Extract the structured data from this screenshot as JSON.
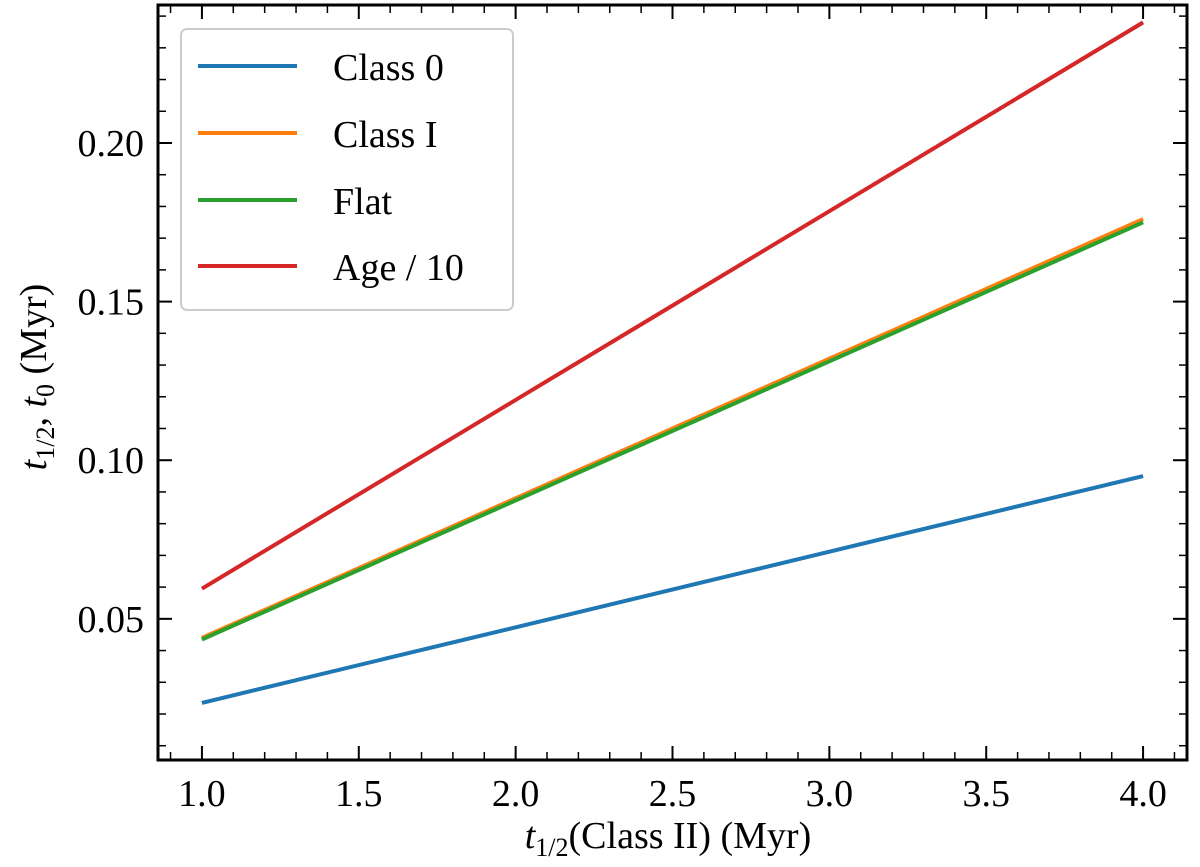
{
  "chart_data": {
    "type": "line",
    "title": "",
    "xlabel_parts": {
      "var": "t",
      "sub": "1/2",
      "rest": "(Class II) (Myr)"
    },
    "ylabel_parts": {
      "var1": "t",
      "sub1": "1/2",
      "sep": ", ",
      "var2": "t",
      "sub2": "0",
      "rest": " (Myr)"
    },
    "xlim": [
      0.86,
      4.14
    ],
    "ylim": [
      0.0055,
      0.2435
    ],
    "x_ticks": [
      1.0,
      1.5,
      2.0,
      2.5,
      3.0,
      3.5,
      4.0
    ],
    "x_tick_labels": [
      "1.0",
      "1.5",
      "2.0",
      "2.5",
      "3.0",
      "3.5",
      "4.0"
    ],
    "y_ticks": [
      0.05,
      0.1,
      0.15,
      0.2
    ],
    "y_tick_labels": [
      "0.05",
      "0.10",
      "0.15",
      "0.20"
    ],
    "x_minor_step": 0.1,
    "y_minor_step": 0.01,
    "grid": false,
    "legend_position": "top-left",
    "series": [
      {
        "name": "Class 0",
        "color": "#1f77b4",
        "x": [
          1.0,
          4.0
        ],
        "y": [
          0.0235,
          0.095
        ]
      },
      {
        "name": "Class I",
        "color": "#ff7f0e",
        "x": [
          1.0,
          4.0
        ],
        "y": [
          0.044,
          0.176
        ]
      },
      {
        "name": "Flat",
        "color": "#2ca02c",
        "x": [
          1.0,
          4.0
        ],
        "y": [
          0.0435,
          0.175
        ]
      },
      {
        "name": "Age / 10",
        "color": "#d62728",
        "x": [
          1.0,
          4.0
        ],
        "y": [
          0.0595,
          0.238
        ]
      }
    ]
  }
}
